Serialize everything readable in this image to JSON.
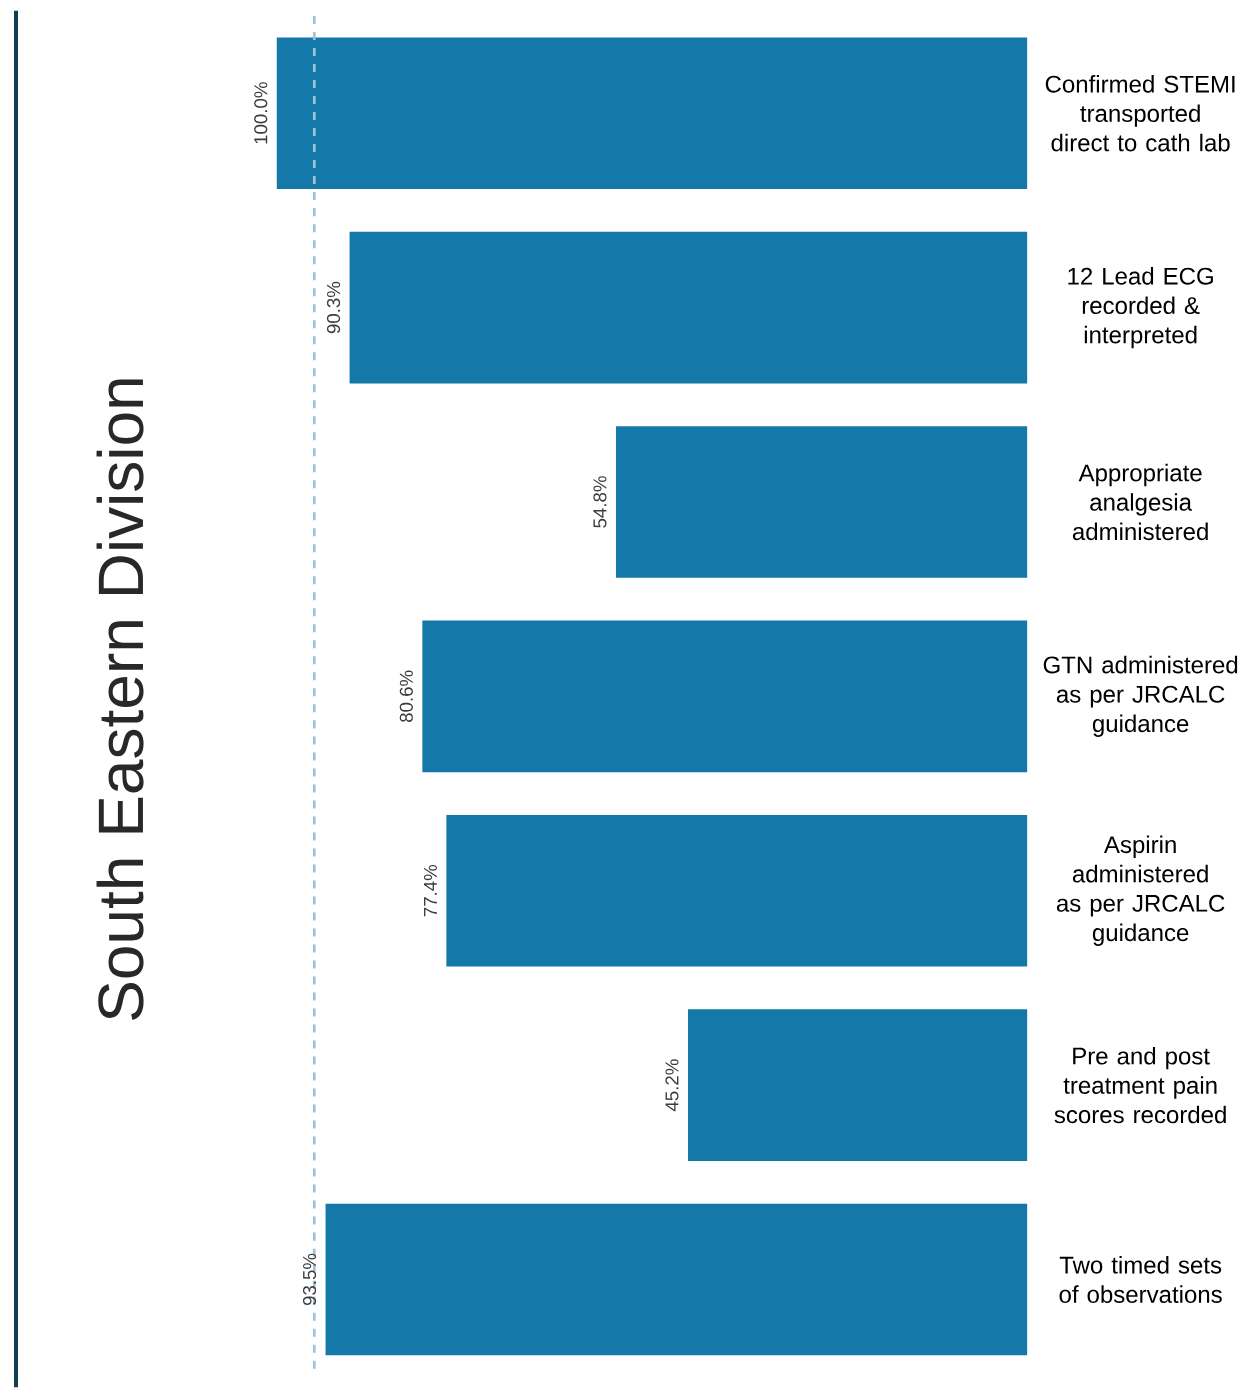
{
  "chart_data": {
    "type": "bar",
    "orientation": "horizontal",
    "title": "South Eastern Division",
    "categories": [
      "Confirmed STEMI transported direct to cath lab",
      "12 Lead ECG recorded & interpreted",
      "Appropriate analgesia administered",
      "GTN administered as per JRCALC guidance",
      "Aspirin administered as per JRCALC guidance",
      "Pre and post treatment pain scores recorded",
      "Two timed sets of observations"
    ],
    "values": [
      100.0,
      90.3,
      54.8,
      80.6,
      77.4,
      45.2,
      93.5
    ],
    "value_labels": [
      "100.0%",
      "90.3%",
      "54.8%",
      "80.6%",
      "77.4%",
      "45.2%",
      "93.5%"
    ],
    "color": "#1479a8",
    "ref_lines": [
      {
        "axis": "x",
        "value": 95,
        "color": "#9cc3d9",
        "line_style": "dashed"
      }
    ]
  }
}
